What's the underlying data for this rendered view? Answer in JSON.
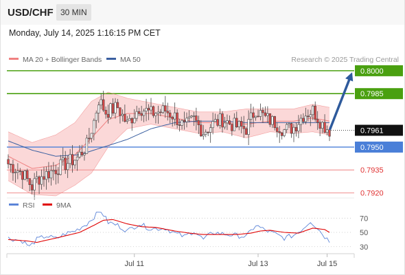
{
  "header": {
    "symbol": "USD/CHF",
    "timeframe": "30 MIN",
    "datetime": "Monday, July 14, 2025 1:16:15 PM CET"
  },
  "credit": "Research © 2025 Trading Central",
  "colors": {
    "bollinger_line": "#f08080",
    "bollinger_fill": "#fbd8d8",
    "ma50": "#3a5fa0",
    "resistance": "#4aa010",
    "support": "#4a7fd8",
    "support_minor": "#f29a9a",
    "candle_up": "#ffffff",
    "candle_down": "#e04848",
    "rsi": "#5b84d8",
    "rsi_ma": "#e00000",
    "arrow": "#2e5a9c"
  },
  "chart_data": [
    {
      "type": "candlestick",
      "legend": [
        "MA 20 + Bollinger Bands",
        "MA 50"
      ],
      "legend_position": "top-left",
      "x_ticks": [
        "Jul 11",
        "Jul 13",
        "Jul 15"
      ],
      "ylim": [
        0.7918,
        0.8004
      ],
      "current_price": "0.7961",
      "levels": [
        {
          "value": 0.8,
          "label": "0.8000",
          "kind": "resistance"
        },
        {
          "value": 0.7985,
          "label": "0.7985",
          "kind": "resistance"
        },
        {
          "value": 0.795,
          "label": "0.7950",
          "kind": "pivot"
        },
        {
          "value": 0.7935,
          "label": "0.7935",
          "kind": "support"
        },
        {
          "value": 0.792,
          "label": "0.7920",
          "kind": "support"
        }
      ],
      "arrow": {
        "from": 0.7962,
        "to": 0.7999
      },
      "close_path": [
        [
          0,
          0.7939
        ],
        [
          6,
          0.7933
        ],
        [
          10,
          0.7924
        ],
        [
          12,
          0.7929
        ],
        [
          18,
          0.7934
        ],
        [
          24,
          0.7939
        ],
        [
          29,
          0.7943
        ],
        [
          33,
          0.7951
        ],
        [
          36,
          0.7967
        ],
        [
          38,
          0.7981
        ],
        [
          41,
          0.7973
        ],
        [
          46,
          0.7976
        ],
        [
          50,
          0.7965
        ],
        [
          55,
          0.7976
        ],
        [
          60,
          0.7972
        ],
        [
          66,
          0.7974
        ],
        [
          70,
          0.797
        ],
        [
          74,
          0.7963
        ],
        [
          78,
          0.7968
        ],
        [
          82,
          0.796
        ],
        [
          86,
          0.7965
        ],
        [
          90,
          0.7968
        ],
        [
          95,
          0.7964
        ],
        [
          100,
          0.7962
        ],
        [
          104,
          0.7975
        ],
        [
          108,
          0.7969
        ],
        [
          112,
          0.7966
        ],
        [
          116,
          0.7961
        ],
        [
          120,
          0.7963
        ],
        [
          124,
          0.7971
        ],
        [
          128,
          0.7974
        ],
        [
          132,
          0.7965
        ],
        [
          135,
          0.7961
        ]
      ],
      "ma20": [
        [
          0,
          0.7944
        ],
        [
          10,
          0.7936
        ],
        [
          20,
          0.7938
        ],
        [
          28,
          0.7945
        ],
        [
          35,
          0.7956
        ],
        [
          42,
          0.7968
        ],
        [
          50,
          0.7972
        ],
        [
          60,
          0.7972
        ],
        [
          70,
          0.7969
        ],
        [
          80,
          0.7966
        ],
        [
          90,
          0.7966
        ],
        [
          100,
          0.7965
        ],
        [
          110,
          0.7967
        ],
        [
          120,
          0.7967
        ],
        [
          128,
          0.7969
        ],
        [
          135,
          0.7967
        ]
      ],
      "bb_upper": [
        [
          0,
          0.796
        ],
        [
          10,
          0.7953
        ],
        [
          20,
          0.7958
        ],
        [
          28,
          0.7966
        ],
        [
          35,
          0.798
        ],
        [
          42,
          0.7986
        ],
        [
          50,
          0.7982
        ],
        [
          60,
          0.7979
        ],
        [
          70,
          0.7976
        ],
        [
          80,
          0.7973
        ],
        [
          90,
          0.7973
        ],
        [
          100,
          0.7975
        ],
        [
          110,
          0.7975
        ],
        [
          120,
          0.7975
        ],
        [
          128,
          0.7978
        ],
        [
          135,
          0.7976
        ]
      ],
      "bb_lower": [
        [
          0,
          0.7928
        ],
        [
          10,
          0.7919
        ],
        [
          20,
          0.7918
        ],
        [
          28,
          0.7925
        ],
        [
          35,
          0.7933
        ],
        [
          42,
          0.795
        ],
        [
          50,
          0.7962
        ],
        [
          60,
          0.7965
        ],
        [
          70,
          0.7962
        ],
        [
          80,
          0.7959
        ],
        [
          90,
          0.796
        ],
        [
          100,
          0.7956
        ],
        [
          110,
          0.796
        ],
        [
          120,
          0.7959
        ],
        [
          128,
          0.796
        ],
        [
          135,
          0.7958
        ]
      ],
      "ma50": [
        [
          0,
          0.7954
        ],
        [
          10,
          0.7948
        ],
        [
          20,
          0.7944
        ],
        [
          30,
          0.7945
        ],
        [
          40,
          0.795
        ],
        [
          50,
          0.7955
        ],
        [
          60,
          0.7962
        ],
        [
          70,
          0.7966
        ],
        [
          80,
          0.7967
        ],
        [
          90,
          0.7967
        ],
        [
          100,
          0.7966
        ],
        [
          110,
          0.7966
        ],
        [
          120,
          0.7966
        ],
        [
          130,
          0.7966
        ],
        [
          135,
          0.7966
        ]
      ]
    },
    {
      "type": "line",
      "legend": [
        "RSI",
        "9MA"
      ],
      "legend_position": "top-left",
      "ylim": [
        24,
        78
      ],
      "y_ticks": [
        "70",
        "50",
        "30"
      ],
      "rsi_path": [
        [
          0,
          42
        ],
        [
          6,
          38
        ],
        [
          9,
          30
        ],
        [
          12,
          40
        ],
        [
          16,
          45
        ],
        [
          20,
          41
        ],
        [
          24,
          48
        ],
        [
          28,
          52
        ],
        [
          33,
          62
        ],
        [
          37,
          75
        ],
        [
          39,
          80
        ],
        [
          42,
          64
        ],
        [
          46,
          60
        ],
        [
          50,
          52
        ],
        [
          55,
          62
        ],
        [
          60,
          55
        ],
        [
          66,
          56
        ],
        [
          70,
          49
        ],
        [
          74,
          44
        ],
        [
          78,
          52
        ],
        [
          82,
          40
        ],
        [
          86,
          50
        ],
        [
          90,
          48
        ],
        [
          95,
          46
        ],
        [
          100,
          44
        ],
        [
          104,
          60
        ],
        [
          108,
          53
        ],
        [
          112,
          48
        ],
        [
          116,
          42
        ],
        [
          120,
          46
        ],
        [
          124,
          56
        ],
        [
          127,
          66
        ],
        [
          130,
          56
        ],
        [
          133,
          44
        ],
        [
          135,
          38
        ]
      ],
      "ma_path": [
        [
          0,
          40
        ],
        [
          8,
          38
        ],
        [
          12,
          36
        ],
        [
          20,
          42
        ],
        [
          30,
          50
        ],
        [
          36,
          60
        ],
        [
          40,
          67
        ],
        [
          44,
          68
        ],
        [
          50,
          62
        ],
        [
          56,
          58
        ],
        [
          62,
          57
        ],
        [
          70,
          52
        ],
        [
          76,
          49
        ],
        [
          82,
          47
        ],
        [
          90,
          47
        ],
        [
          96,
          47
        ],
        [
          102,
          49
        ],
        [
          106,
          52
        ],
        [
          110,
          53
        ],
        [
          116,
          50
        ],
        [
          122,
          49
        ],
        [
          128,
          56
        ],
        [
          133,
          54
        ],
        [
          135,
          50
        ]
      ]
    }
  ]
}
